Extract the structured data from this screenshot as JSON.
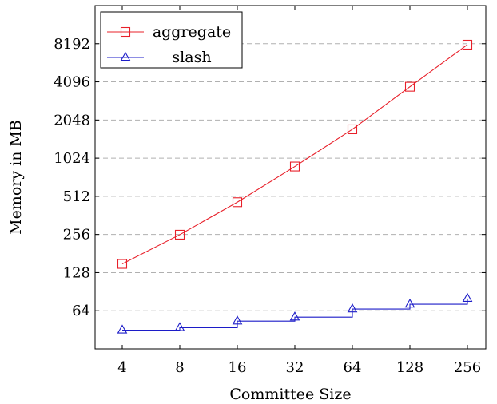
{
  "chart_data": {
    "type": "line",
    "xlabel": "Committee Size",
    "ylabel": "Memory in MB",
    "x": [
      4,
      8,
      16,
      32,
      64,
      128,
      256
    ],
    "x_ticks": [
      "4",
      "8",
      "16",
      "32",
      "64",
      "128",
      "256"
    ],
    "y_scale": "log2",
    "y_ticks": [
      64,
      128,
      256,
      512,
      1024,
      2048,
      4096,
      8192
    ],
    "y_tick_labels": [
      "64",
      "128",
      "256",
      "512",
      "1024",
      "2048",
      "4096",
      "8192"
    ],
    "ylim": [
      32,
      16384
    ],
    "grid": "horizontal-dashed",
    "legend_position": "top-left",
    "series": [
      {
        "name": "aggregate",
        "color": "#e8202a",
        "marker": "square",
        "style": "line",
        "values": [
          150,
          255,
          460,
          880,
          1730,
          3750,
          8050
        ]
      },
      {
        "name": "slash",
        "color": "#1c1cc8",
        "marker": "triangle",
        "style": "step",
        "values": [
          45,
          47,
          53,
          57,
          66,
          72,
          80
        ]
      }
    ]
  }
}
